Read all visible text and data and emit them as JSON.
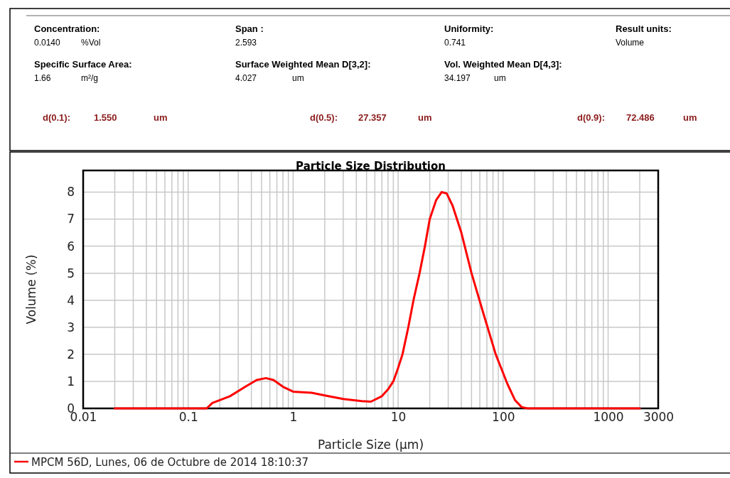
{
  "chart_data": {
    "type": "line",
    "title": "Particle Size Distribution",
    "xlabel": "Particle Size (µm)",
    "ylabel": "Volume (%)",
    "annotations": [
      "Concentration:",
      "0.0140",
      "%Vol",
      "Span :",
      "2.593",
      "Uniformity:",
      "0.741",
      "Result units:",
      "Volume",
      "Specific Surface Area:",
      "1.66",
      "m²/g",
      "Surface Weighted Mean D[3,2]:",
      "4.027",
      "um",
      "Vol. Weighted Mean D[4,3]:",
      "34.197",
      "um",
      "d(0.1):",
      "1.550",
      "um",
      "d(0.5):",
      "27.357",
      "um",
      "d(0.9):",
      "72.486",
      "um"
    ],
    "log": "x",
    "xlim": [
      0.01,
      3000
    ],
    "xticks": [
      0.01,
      0.1,
      1,
      10,
      100,
      1000,
      3000
    ],
    "ylim": [
      0,
      8.8
    ],
    "yticks": [
      0,
      1,
      2,
      3,
      4,
      5,
      6,
      7,
      8
    ],
    "grid": true,
    "legend": "bottom left",
    "line_style": "solid",
    "marker": "none",
    "series": [
      {
        "name": "MPCM 56D, Lunes, 06 de Octubre de 2014 18:10:37",
        "color": "#ff0000",
        "x": [
          0.02,
          0.15,
          0.17,
          0.25,
          0.35,
          0.45,
          0.55,
          0.65,
          0.8,
          1.0,
          1.5,
          2.0,
          3.0,
          4.5,
          5.5,
          7,
          8,
          9,
          10,
          11,
          12.5,
          14,
          16,
          18,
          20,
          23,
          26,
          29,
          33,
          40,
          50,
          65,
          85,
          110,
          130,
          150,
          170,
          2000
        ],
        "values": [
          0,
          0,
          0.2,
          0.45,
          0.8,
          1.05,
          1.12,
          1.05,
          0.8,
          0.62,
          0.58,
          0.48,
          0.35,
          0.27,
          0.25,
          0.45,
          0.7,
          1.0,
          1.5,
          2.0,
          3.0,
          4.0,
          5.0,
          6.0,
          7.0,
          7.7,
          8.0,
          7.95,
          7.5,
          6.5,
          5.0,
          3.5,
          2.0,
          0.9,
          0.3,
          0.05,
          0,
          0
        ]
      }
    ]
  }
}
